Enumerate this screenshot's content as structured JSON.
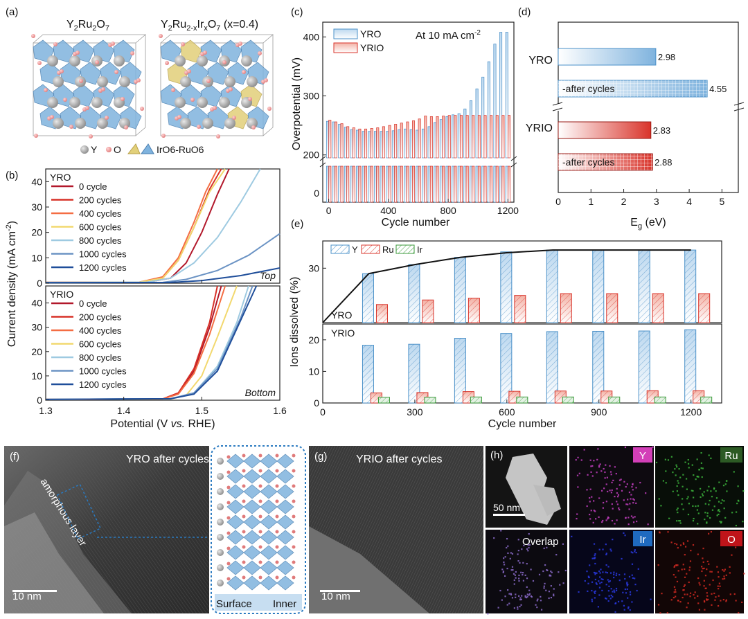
{
  "colors": {
    "blue": "#4a90c8",
    "lightblue": "#cfe3f3",
    "red": "#d9342b",
    "green": "#3a9a3a",
    "dark": "#222222"
  },
  "panel_a": {
    "label": "(a)",
    "left_title": "Y2Ru2O7",
    "right_title": "Y2Ru2-xIrxO7 (x=0.4)",
    "legend": {
      "y": "Y",
      "o": "O",
      "poly": "IrO6-RuO6"
    }
  },
  "chart_data": [
    {
      "id": "b-top",
      "type": "line",
      "panel_label": "(b)",
      "series_group": "YRO",
      "corner_label": "Top",
      "xlim": [
        1.3,
        1.6
      ],
      "ylim": [
        0,
        45
      ],
      "yticks": [
        0,
        10,
        20,
        30,
        40
      ],
      "xticks": [
        1.3,
        1.4,
        1.5,
        1.6
      ],
      "series": [
        {
          "name": "0 cycle",
          "color": "#b2182b",
          "points": [
            [
              1.3,
              0.3
            ],
            [
              1.43,
              0.4
            ],
            [
              1.46,
              2
            ],
            [
              1.48,
              8
            ],
            [
              1.5,
              20
            ],
            [
              1.52,
              35
            ],
            [
              1.535,
              45
            ]
          ]
        },
        {
          "name": "200 cycles",
          "color": "#d73027",
          "points": [
            [
              1.3,
              0.3
            ],
            [
              1.42,
              0.4
            ],
            [
              1.45,
              2
            ],
            [
              1.47,
              9
            ],
            [
              1.49,
              22
            ],
            [
              1.51,
              37
            ],
            [
              1.525,
              45
            ]
          ]
        },
        {
          "name": "400 cycles",
          "color": "#f46d43",
          "points": [
            [
              1.3,
              0.3
            ],
            [
              1.42,
              0.4
            ],
            [
              1.45,
              2.5
            ],
            [
              1.47,
              10
            ],
            [
              1.49,
              24
            ],
            [
              1.505,
              36
            ],
            [
              1.52,
              45
            ]
          ]
        },
        {
          "name": "600 cycles",
          "color": "#f2d86e",
          "points": [
            [
              1.3,
              0.3
            ],
            [
              1.42,
              0.4
            ],
            [
              1.45,
              2
            ],
            [
              1.47,
              9
            ],
            [
              1.49,
              22
            ],
            [
              1.51,
              36
            ],
            [
              1.53,
              45
            ]
          ]
        },
        {
          "name": "800 cycles",
          "color": "#9ecae1",
          "points": [
            [
              1.3,
              0.3
            ],
            [
              1.43,
              0.4
            ],
            [
              1.46,
              2
            ],
            [
              1.49,
              8
            ],
            [
              1.52,
              18
            ],
            [
              1.55,
              32
            ],
            [
              1.575,
              45
            ]
          ]
        },
        {
          "name": "1000 cycles",
          "color": "#6b93c4",
          "points": [
            [
              1.3,
              0.2
            ],
            [
              1.45,
              0.3
            ],
            [
              1.48,
              1.5
            ],
            [
              1.52,
              5
            ],
            [
              1.56,
              11
            ],
            [
              1.6,
              19.5
            ]
          ]
        },
        {
          "name": "1200 cycles",
          "color": "#1f4e9a",
          "points": [
            [
              1.3,
              0.2
            ],
            [
              1.46,
              0.3
            ],
            [
              1.5,
              1
            ],
            [
              1.55,
              3
            ],
            [
              1.6,
              6
            ]
          ]
        }
      ]
    },
    {
      "id": "b-bottom",
      "type": "line",
      "series_group": "YRIO",
      "corner_label": "Bottom",
      "xlim": [
        1.3,
        1.6
      ],
      "ylim": [
        0,
        47
      ],
      "yticks": [
        0,
        10,
        20,
        30,
        40
      ],
      "xticks": [
        1.3,
        1.4,
        1.5,
        1.6
      ],
      "xlabel_prefix": "Potential (V ",
      "xlabel_italic": "vs.",
      "xlabel_suffix": " RHE)",
      "series": [
        {
          "name": "0 cycle",
          "color": "#b2182b",
          "points": [
            [
              1.3,
              0.3
            ],
            [
              1.45,
              0.5
            ],
            [
              1.47,
              3
            ],
            [
              1.49,
              12
            ],
            [
              1.51,
              30
            ],
            [
              1.525,
              47
            ]
          ]
        },
        {
          "name": "200 cycles",
          "color": "#d73027",
          "points": [
            [
              1.3,
              0.3
            ],
            [
              1.45,
              0.5
            ],
            [
              1.47,
              3
            ],
            [
              1.49,
              13
            ],
            [
              1.51,
              32
            ],
            [
              1.52,
              47
            ]
          ]
        },
        {
          "name": "400 cycles",
          "color": "#f46d43",
          "points": [
            [
              1.3,
              0.3
            ],
            [
              1.45,
              0.5
            ],
            [
              1.47,
              2.5
            ],
            [
              1.49,
              11
            ],
            [
              1.51,
              27
            ],
            [
              1.53,
              47
            ]
          ]
        },
        {
          "name": "600 cycles",
          "color": "#f2d86e",
          "points": [
            [
              1.3,
              0.3
            ],
            [
              1.46,
              0.5
            ],
            [
              1.48,
              2
            ],
            [
              1.5,
              10
            ],
            [
              1.52,
              26
            ],
            [
              1.545,
              47
            ]
          ]
        },
        {
          "name": "800 cycles",
          "color": "#9ecae1",
          "points": [
            [
              1.3,
              0.3
            ],
            [
              1.46,
              0.6
            ],
            [
              1.49,
              3
            ],
            [
              1.52,
              14
            ],
            [
              1.545,
              32
            ],
            [
              1.56,
              47
            ]
          ]
        },
        {
          "name": "1000 cycles",
          "color": "#6b93c4",
          "points": [
            [
              1.3,
              0.3
            ],
            [
              1.46,
              0.6
            ],
            [
              1.49,
              3
            ],
            [
              1.52,
              13
            ],
            [
              1.55,
              34
            ],
            [
              1.565,
              47
            ]
          ]
        },
        {
          "name": "1200 cycles",
          "color": "#1f4e9a",
          "points": [
            [
              1.3,
              0.3
            ],
            [
              1.46,
              0.6
            ],
            [
              1.49,
              2.5
            ],
            [
              1.52,
              12
            ],
            [
              1.55,
              33
            ],
            [
              1.57,
              47
            ]
          ]
        }
      ]
    },
    {
      "id": "c",
      "type": "bar",
      "panel_label": "(c)",
      "title": "At 10 mA cm-2",
      "ylabel": "Overpotential (mV)",
      "xlabel": "Cycle number",
      "xticks": [
        0,
        400,
        800,
        1200
      ],
      "yticks_upper": [
        200,
        300,
        400
      ],
      "ytick_lower": 0,
      "x": [
        0,
        40,
        80,
        120,
        160,
        200,
        240,
        280,
        320,
        360,
        400,
        440,
        480,
        520,
        560,
        600,
        640,
        680,
        720,
        760,
        800,
        840,
        880,
        920,
        960,
        1000,
        1040,
        1080,
        1120,
        1160,
        1200
      ],
      "series": [
        {
          "name": "YRO",
          "color": "#4a90c8",
          "values": [
            257,
            256,
            252,
            247,
            243,
            242,
            240,
            240,
            240,
            240,
            240,
            241,
            243,
            244,
            243,
            242,
            244,
            248,
            255,
            260,
            265,
            268,
            270,
            278,
            292,
            312,
            332,
            358,
            388,
            408,
            408
          ]
        },
        {
          "name": "YRIO",
          "color": "#d9342b",
          "values": [
            259,
            256,
            253,
            248,
            246,
            244,
            244,
            245,
            246,
            248,
            250,
            252,
            254,
            256,
            258,
            261,
            266,
            265,
            265,
            266,
            267,
            267,
            267,
            267,
            267,
            267,
            267,
            267,
            267,
            267,
            267
          ]
        }
      ]
    },
    {
      "id": "d",
      "type": "bar",
      "orientation": "horizontal",
      "panel_label": "(d)",
      "xlabel": "Eg (eV)",
      "xlim": [
        0,
        5.5
      ],
      "xticks": [
        0,
        1,
        2,
        3,
        4,
        5
      ],
      "groups": [
        "YRO",
        "YRIO"
      ],
      "bars": [
        {
          "group": "YRO",
          "label": "",
          "value": 2.98,
          "value_label": "2.98",
          "color": "#4a90c8",
          "pattern": "solid"
        },
        {
          "group": "YRO",
          "label": "-after cycles",
          "value": 4.55,
          "value_label": "4.55",
          "color": "#4a90c8",
          "pattern": "grid"
        },
        {
          "group": "YRIO",
          "label": "",
          "value": 2.83,
          "value_label": "2.83",
          "color": "#d9342b",
          "pattern": "solid"
        },
        {
          "group": "YRIO",
          "label": "-after cycles",
          "value": 2.88,
          "value_label": "2.88",
          "color": "#d9342b",
          "pattern": "grid"
        }
      ]
    },
    {
      "id": "e-top",
      "type": "bar",
      "panel_label": "(e)",
      "series_group": "YRO",
      "ylim": [
        0,
        45
      ],
      "yticks": [
        30
      ],
      "x": [
        150,
        300,
        450,
        600,
        750,
        900,
        1050,
        1200
      ],
      "series": [
        {
          "name": "Y",
          "color": "#4a90c8",
          "values": [
            27,
            32,
            36,
            39,
            40,
            40,
            40,
            40
          ]
        },
        {
          "name": "Ru",
          "color": "#d9342b",
          "values": [
            10,
            12.5,
            13.5,
            15,
            16,
            16,
            16,
            16
          ]
        }
      ],
      "trend": [
        [
          0,
          0
        ],
        [
          150,
          27
        ],
        [
          300,
          32
        ],
        [
          450,
          36
        ],
        [
          600,
          38.5
        ],
        [
          750,
          40
        ],
        [
          900,
          40
        ],
        [
          1050,
          40
        ],
        [
          1200,
          40
        ]
      ]
    },
    {
      "id": "e-bottom",
      "type": "bar",
      "series_group": "YRIO",
      "ylabel": "Ions dissolved (%)",
      "xlabel": "Cycle number",
      "xlim": [
        0,
        1300
      ],
      "xticks": [
        0,
        300,
        600,
        900,
        1200
      ],
      "ylim": [
        0,
        25
      ],
      "yticks": [
        0,
        10,
        20
      ],
      "x": [
        150,
        300,
        450,
        600,
        750,
        900,
        1050,
        1200
      ],
      "series": [
        {
          "name": "Y",
          "color": "#4a90c8",
          "values": [
            18.3,
            18.6,
            20.5,
            22,
            22.6,
            22.7,
            22.8,
            23.2
          ]
        },
        {
          "name": "Ru",
          "color": "#d9342b",
          "values": [
            3.2,
            3.3,
            3.6,
            3.7,
            3.8,
            3.8,
            3.9,
            3.9
          ]
        },
        {
          "name": "Ir",
          "color": "#3a9a3a",
          "values": [
            1.8,
            1.8,
            1.9,
            1.9,
            1.9,
            1.9,
            1.9,
            1.9
          ]
        }
      ]
    }
  ],
  "panel_b": {
    "ylabel_main": "Current density (mA cm",
    "ylabel_sup": "-2",
    "ylabel_end": ")"
  },
  "panel_f": {
    "label": "(f)",
    "title": "YRO after cycles",
    "annotation": "amorphous layer",
    "scale": "10 nm",
    "surface": "Surface",
    "inner": "Inner"
  },
  "panel_g": {
    "label": "(g)",
    "title": "YRIO after cycles",
    "scale": "10 nm"
  },
  "panel_h": {
    "label": "(h)",
    "scale": "50 nm",
    "tiles": [
      "Y",
      "Ru",
      "Overlap",
      "Ir",
      "O"
    ]
  }
}
